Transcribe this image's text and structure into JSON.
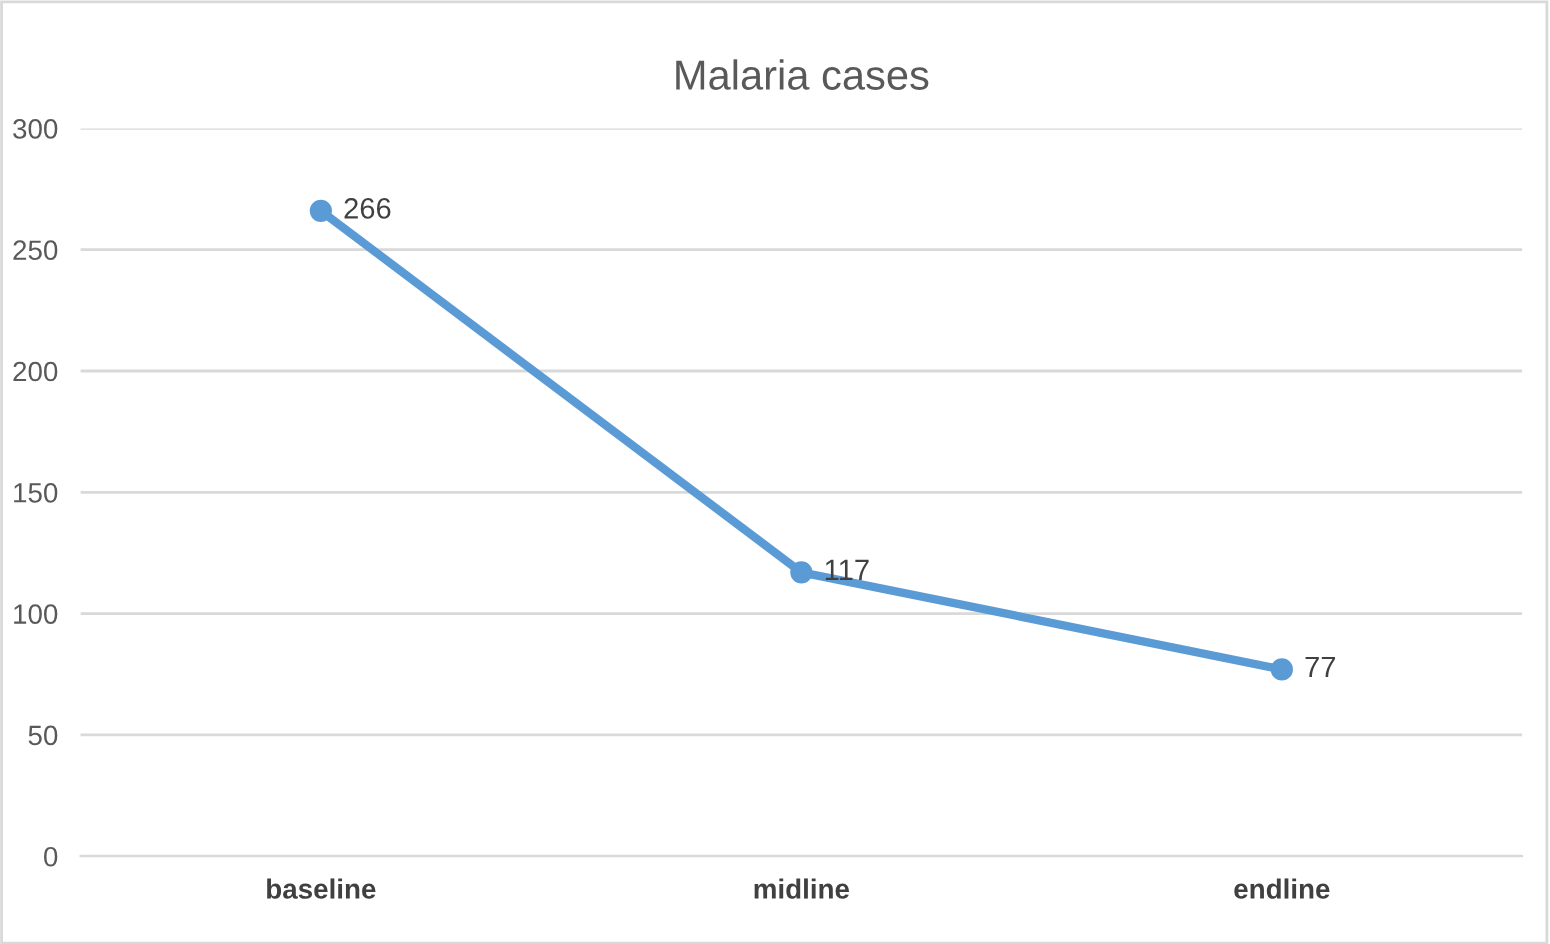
{
  "chart_data": {
    "type": "line",
    "title": "Malaria cases",
    "categories": [
      "baseline",
      "midline",
      "endline"
    ],
    "series": [
      {
        "color": "#5b9bd5",
        "values": [
          266,
          117,
          77
        ]
      }
    ],
    "ylim": [
      0,
      300
    ],
    "yticks": [
      0,
      50,
      100,
      150,
      200,
      250,
      300
    ],
    "grid": "y",
    "marker": "circle",
    "line_style": "solid",
    "data_labels": true
  }
}
